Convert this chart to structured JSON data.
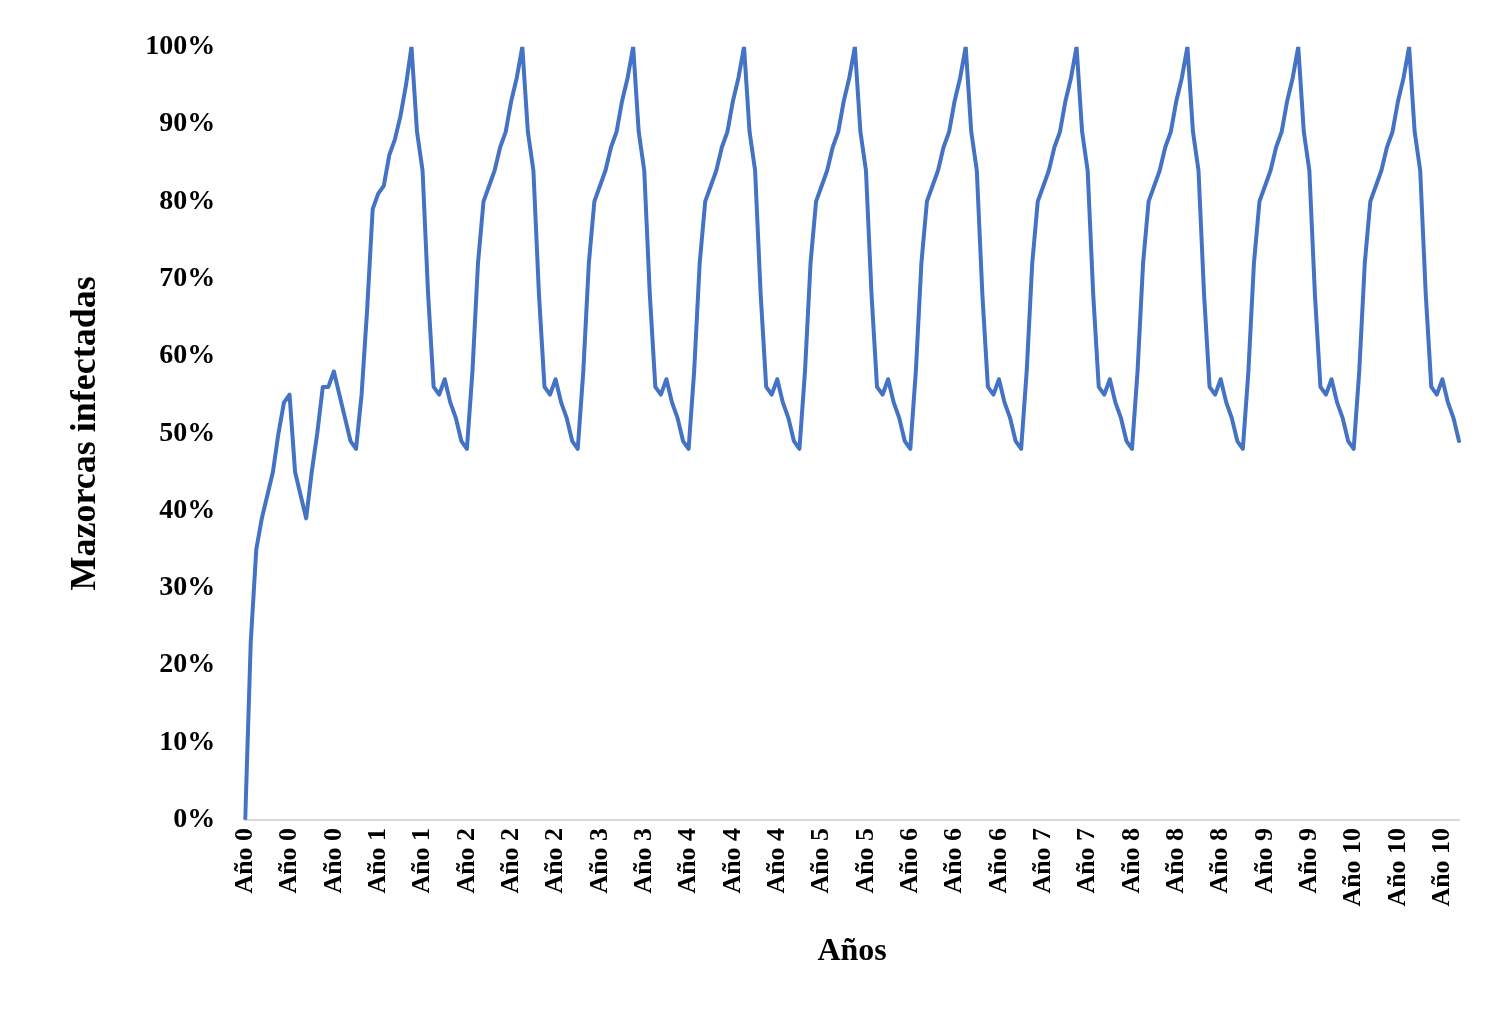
{
  "chart_data": {
    "type": "line",
    "xlabel": "Años",
    "ylabel": "Mazorcas infectadas",
    "categories": [
      "Año 0",
      null,
      null,
      null,
      null,
      null,
      null,
      null,
      "Año 0",
      null,
      null,
      null,
      null,
      null,
      null,
      null,
      "Año 0",
      null,
      null,
      null,
      null,
      null,
      null,
      null,
      "Año 1",
      null,
      null,
      null,
      null,
      null,
      null,
      null,
      "Año 1",
      null,
      null,
      null,
      null,
      null,
      null,
      null,
      "Año 2",
      null,
      null,
      null,
      null,
      null,
      null,
      null,
      "Año 2",
      null,
      null,
      null,
      null,
      null,
      null,
      null,
      "Año 2",
      null,
      null,
      null,
      null,
      null,
      null,
      null,
      "Año 3",
      null,
      null,
      null,
      null,
      null,
      null,
      null,
      "Año 3",
      null,
      null,
      null,
      null,
      null,
      null,
      null,
      "Año 4",
      null,
      null,
      null,
      null,
      null,
      null,
      null,
      "Año 4",
      null,
      null,
      null,
      null,
      null,
      null,
      null,
      "Año 4",
      null,
      null,
      null,
      null,
      null,
      null,
      null,
      "Año 5",
      null,
      null,
      null,
      null,
      null,
      null,
      null,
      "Año 5",
      null,
      null,
      null,
      null,
      null,
      null,
      null,
      "Año 6",
      null,
      null,
      null,
      null,
      null,
      null,
      null,
      "Año 6",
      null,
      null,
      null,
      null,
      null,
      null,
      null,
      "Año 6",
      null,
      null,
      null,
      null,
      null,
      null,
      null,
      "Año 7",
      null,
      null,
      null,
      null,
      null,
      null,
      null,
      "Año 7",
      null,
      null,
      null,
      null,
      null,
      null,
      null,
      "Año 8",
      null,
      null,
      null,
      null,
      null,
      null,
      null,
      "Año 8",
      null,
      null,
      null,
      null,
      null,
      null,
      null,
      "Año 8",
      null,
      null,
      null,
      null,
      null,
      null,
      null,
      "Año 9",
      null,
      null,
      null,
      null,
      null,
      null,
      null,
      "Año 9",
      null,
      null,
      null,
      null,
      null,
      null,
      null,
      "Año 10",
      null,
      null,
      null,
      null,
      null,
      null,
      null,
      "Año 10",
      null,
      null,
      null,
      null,
      null,
      null,
      null,
      "Año 10",
      null,
      null,
      null
    ],
    "series": [
      {
        "color": "#4472c4",
        "values": [
          0,
          23,
          35,
          39,
          42,
          45,
          50,
          54,
          55,
          45,
          42,
          39,
          45,
          50,
          56,
          56,
          58,
          55,
          52,
          49,
          48,
          55,
          66,
          79,
          81,
          82,
          86,
          88,
          91,
          95,
          100,
          89,
          84,
          68,
          56,
          55,
          57,
          54,
          52,
          49,
          48,
          58,
          72,
          80,
          82,
          84,
          87,
          89,
          93,
          96,
          100,
          89,
          84,
          68,
          56,
          55,
          57,
          54,
          52,
          49,
          48,
          58,
          72,
          80,
          82,
          84,
          87,
          89,
          93,
          96,
          100,
          89,
          84,
          68,
          56,
          55,
          57,
          54,
          52,
          49,
          48,
          58,
          72,
          80,
          82,
          84,
          87,
          89,
          93,
          96,
          100,
          89,
          84,
          68,
          56,
          55,
          57,
          54,
          52,
          49,
          48,
          58,
          72,
          80,
          82,
          84,
          87,
          89,
          93,
          96,
          100,
          89,
          84,
          68,
          56,
          55,
          57,
          54,
          52,
          49,
          48,
          58,
          72,
          80,
          82,
          84,
          87,
          89,
          93,
          96,
          100,
          89,
          84,
          68,
          56,
          55,
          57,
          54,
          52,
          49,
          48,
          58,
          72,
          80,
          82,
          84,
          87,
          89,
          93,
          96,
          100,
          89,
          84,
          68,
          56,
          55,
          57,
          54,
          52,
          49,
          48,
          58,
          72,
          80,
          82,
          84,
          87,
          89,
          93,
          96,
          100,
          89,
          84,
          68,
          56,
          55,
          57,
          54,
          52,
          49,
          48,
          58,
          72,
          80,
          82,
          84,
          87,
          89,
          93,
          96,
          100,
          89,
          84,
          68,
          56,
          55,
          57,
          54,
          52,
          49,
          48,
          58,
          72,
          80,
          82,
          84,
          87,
          89,
          93,
          96,
          100,
          89,
          84,
          68,
          56,
          55,
          57,
          54,
          52,
          49
        ]
      }
    ],
    "ylim": [
      0,
      100
    ],
    "yticks": [
      {
        "value": 0,
        "label": "0%"
      },
      {
        "value": 10,
        "label": "10%"
      },
      {
        "value": 20,
        "label": "20%"
      },
      {
        "value": 30,
        "label": "30%"
      },
      {
        "value": 40,
        "label": "40%"
      },
      {
        "value": 50,
        "label": "50%"
      },
      {
        "value": 60,
        "label": "60%"
      },
      {
        "value": 70,
        "label": "70%"
      },
      {
        "value": 80,
        "label": "80%"
      },
      {
        "value": 90,
        "label": "90%"
      },
      {
        "value": 100,
        "label": "100%"
      }
    ],
    "grid": false,
    "legend": false,
    "marker": "none",
    "line_style": "solid"
  }
}
